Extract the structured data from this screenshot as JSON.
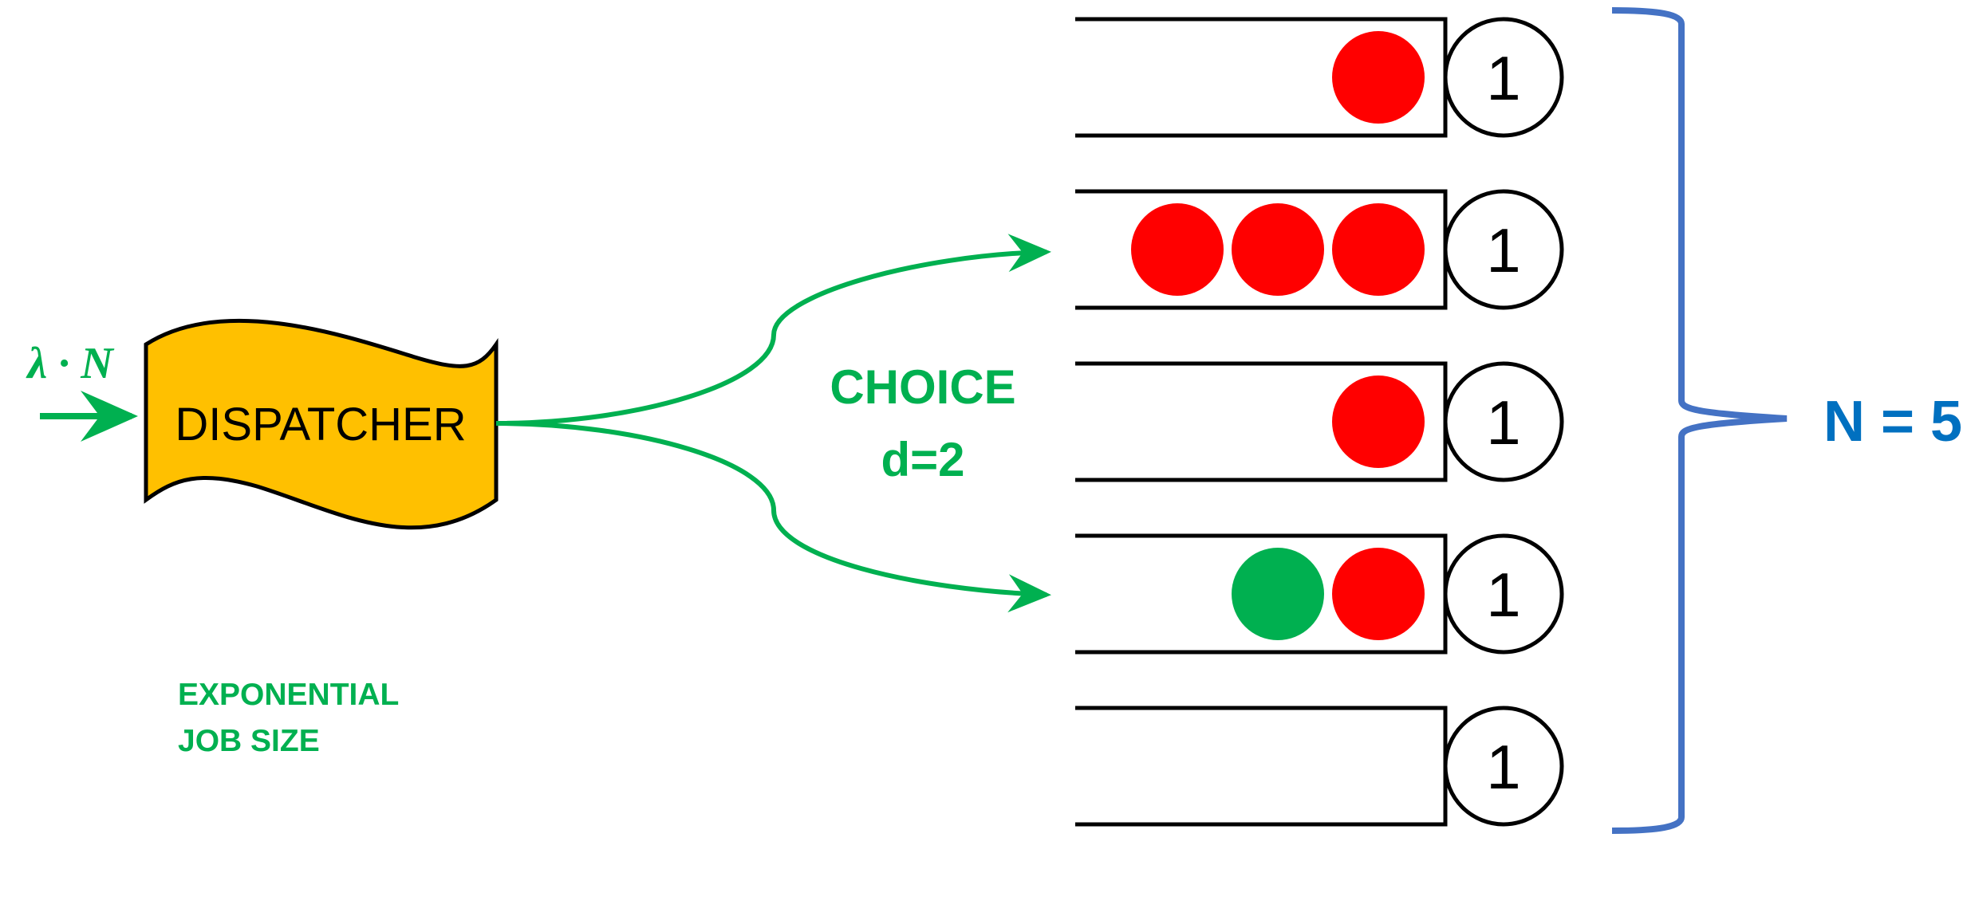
{
  "arrival": {
    "label": "λ · N"
  },
  "dispatcher": {
    "label": "DISPATCHER"
  },
  "choice": {
    "line1": "CHOICE",
    "line2": "d=2"
  },
  "job_size": {
    "line1": "EXPONENTIAL",
    "line2": "JOB SIZE"
  },
  "servers": {
    "count_label": "N = 5",
    "queues": [
      {
        "rate": "1",
        "jobs": [
          "red"
        ]
      },
      {
        "rate": "1",
        "jobs": [
          "red",
          "red",
          "red"
        ]
      },
      {
        "rate": "1",
        "jobs": [
          "red"
        ]
      },
      {
        "rate": "1",
        "jobs": [
          "red",
          "green"
        ]
      },
      {
        "rate": "1",
        "jobs": []
      }
    ]
  },
  "colors": {
    "green": "#00B050",
    "red": "#FF0000",
    "dispatcher_fill": "#FFC000",
    "brace_blue": "#4472C4",
    "n_label": "#0070C0",
    "outline": "#000000"
  }
}
